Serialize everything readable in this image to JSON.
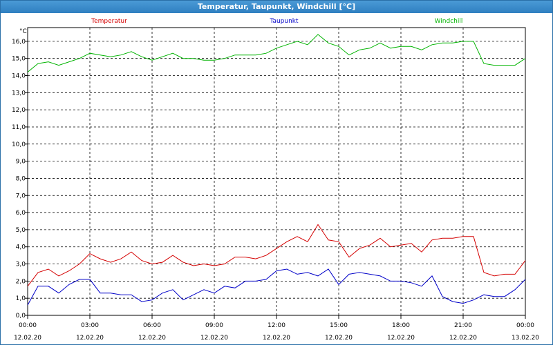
{
  "window": {
    "title": "Temperatur, Taupunkt, Windchill [°C]"
  },
  "chart_data": {
    "type": "line",
    "title": "Temperatur, Taupunkt, Windchill [°C]",
    "ylabel": "°C",
    "ylim": [
      0,
      16.8
    ],
    "yticks": [
      "0,0",
      "1,0",
      "2,0",
      "3,0",
      "4,0",
      "5,0",
      "6,0",
      "7,0",
      "8,0",
      "9,0",
      "10,0",
      "11,0",
      "12,0",
      "13,0",
      "14,0",
      "15,0",
      "16,0"
    ],
    "xlim": [
      0,
      24
    ],
    "xticks": [
      {
        "x": 0,
        "time": "00:00",
        "date": "12.02.20"
      },
      {
        "x": 3,
        "time": "03:00",
        "date": "12.02.20"
      },
      {
        "x": 6,
        "time": "06:00",
        "date": "12.02.20"
      },
      {
        "x": 9,
        "time": "09:00",
        "date": "12.02.20"
      },
      {
        "x": 12,
        "time": "12:00",
        "date": "12.02.20"
      },
      {
        "x": 15,
        "time": "15:00",
        "date": "12.02.20"
      },
      {
        "x": 18,
        "time": "18:00",
        "date": "12.02.20"
      },
      {
        "x": 21,
        "time": "21:00",
        "date": "12.02.20"
      },
      {
        "x": 24,
        "time": "00:00",
        "date": "13.02.20"
      }
    ],
    "grid": true,
    "legend_position": "top",
    "x": [
      0,
      0.5,
      1,
      1.5,
      2,
      2.5,
      3,
      3.5,
      4,
      4.5,
      5,
      5.5,
      6,
      6.5,
      7,
      7.5,
      8,
      8.5,
      9,
      9.5,
      10,
      10.5,
      11,
      11.5,
      12,
      12.5,
      13,
      13.5,
      14,
      14.5,
      15,
      15.5,
      16,
      16.5,
      17,
      17.5,
      18,
      18.5,
      19,
      19.5,
      20,
      20.5,
      21,
      21.5,
      22,
      22.5,
      23,
      23.5,
      24
    ],
    "series": [
      {
        "name": "Temperatur",
        "color": "#d40000",
        "values": [
          1.7,
          2.5,
          2.7,
          2.3,
          2.6,
          3.0,
          3.6,
          3.3,
          3.1,
          3.3,
          3.7,
          3.2,
          3.0,
          3.1,
          3.5,
          3.1,
          2.9,
          3.0,
          2.9,
          3.0,
          3.4,
          3.4,
          3.3,
          3.5,
          3.9,
          4.3,
          4.6,
          4.3,
          5.3,
          4.4,
          4.3,
          3.4,
          3.9,
          4.1,
          4.5,
          4.0,
          4.1,
          4.2,
          3.7,
          4.4,
          4.5,
          4.5,
          4.6,
          4.6,
          2.5,
          2.3,
          2.4,
          2.4,
          3.2
        ]
      },
      {
        "name": "Taupunkt",
        "color": "#0000c8",
        "values": [
          0.6,
          1.7,
          1.7,
          1.3,
          1.8,
          2.1,
          2.1,
          1.3,
          1.3,
          1.2,
          1.2,
          0.8,
          0.9,
          1.3,
          1.5,
          0.9,
          1.2,
          1.5,
          1.3,
          1.7,
          1.6,
          2.0,
          2.0,
          2.1,
          2.6,
          2.7,
          2.4,
          2.5,
          2.3,
          2.7,
          1.8,
          2.4,
          2.5,
          2.4,
          2.3,
          2.0,
          2.0,
          1.9,
          1.7,
          2.3,
          1.1,
          0.8,
          0.7,
          0.9,
          1.2,
          1.1,
          1.1,
          1.5,
          2.1
        ]
      },
      {
        "name": "Windchill",
        "color": "#00b400",
        "values": [
          14.2,
          14.7,
          14.8,
          14.6,
          14.8,
          15.0,
          15.3,
          15.2,
          15.1,
          15.2,
          15.4,
          15.1,
          14.9,
          15.1,
          15.3,
          15.0,
          15.0,
          14.9,
          14.9,
          15.0,
          15.2,
          15.2,
          15.2,
          15.3,
          15.6,
          15.8,
          16.0,
          15.8,
          16.4,
          15.9,
          15.7,
          15.2,
          15.5,
          15.6,
          15.9,
          15.6,
          15.7,
          15.7,
          15.5,
          15.8,
          15.9,
          15.9,
          16.0,
          16.0,
          14.7,
          14.6,
          14.6,
          14.6,
          15.0
        ]
      }
    ]
  }
}
